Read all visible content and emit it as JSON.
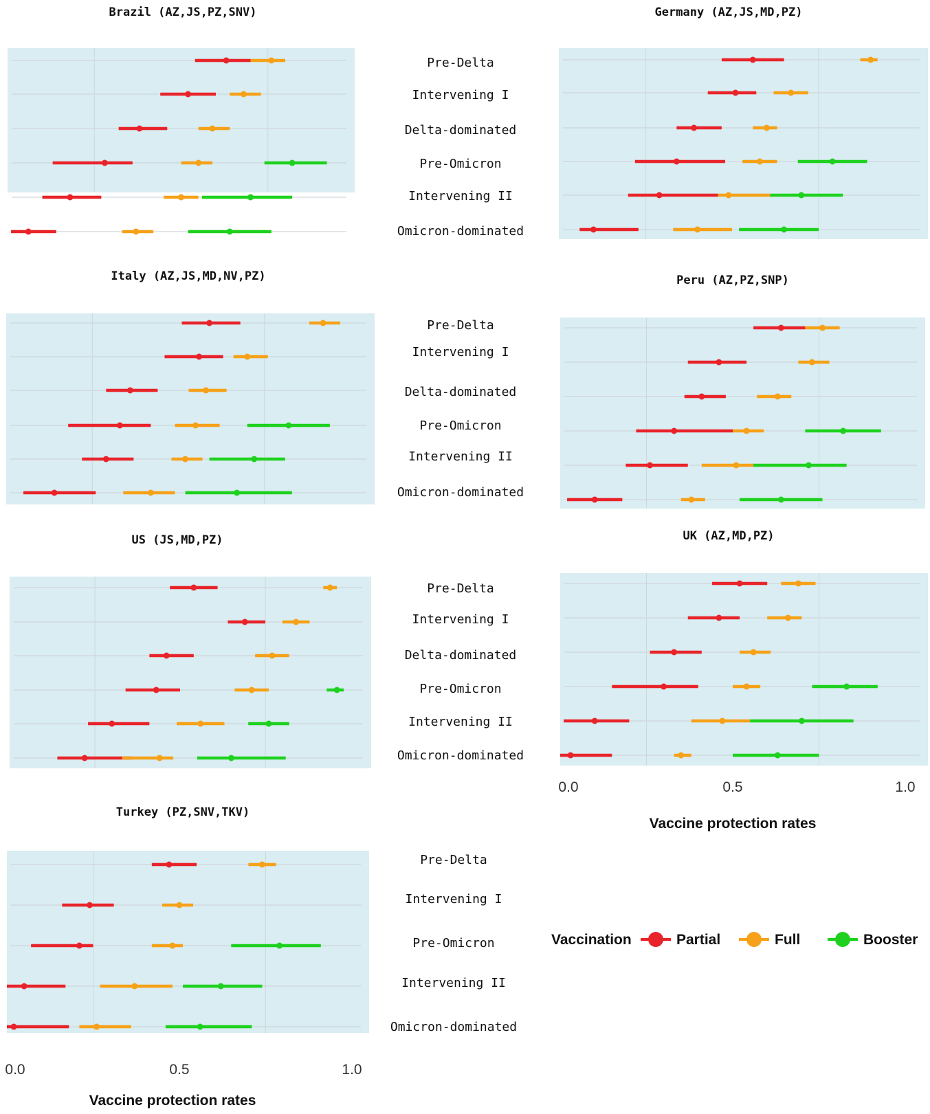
{
  "colors": {
    "Partial": "#e8242a",
    "Full": "#f6a118",
    "Booster": "#1ed11e",
    "panel": "#d9edf2",
    "grid": "#d0d6da"
  },
  "x_axis": {
    "label": "Vaccine  protection rates",
    "ticks": [
      "0.0",
      "0.5",
      "1.0"
    ]
  },
  "legend": {
    "title": "Vaccination",
    "items": [
      "Partial",
      "Full",
      "Booster"
    ]
  },
  "chart_data": [
    {
      "type": "forest",
      "title": "Brazil (AZ,JS,PZ,SNV)",
      "periods": [
        "Pre-Delta",
        "Intervening I",
        "Delta-dominated",
        "Pre-Omicron",
        "Intervening II",
        "Omicron-dominated"
      ],
      "xlim": [
        0,
        1
      ],
      "series": [
        {
          "name": "Partial",
          "values": [
            [
              0.63,
              0.54,
              0.7
            ],
            [
              0.52,
              0.44,
              0.6
            ],
            [
              0.38,
              0.32,
              0.46
            ],
            [
              0.28,
              0.13,
              0.36
            ],
            [
              0.18,
              0.1,
              0.27
            ],
            [
              0.06,
              0.01,
              0.14
            ]
          ]
        },
        {
          "name": "Full",
          "values": [
            [
              0.76,
              0.7,
              0.8
            ],
            [
              0.68,
              0.64,
              0.73
            ],
            [
              0.59,
              0.55,
              0.64
            ],
            [
              0.55,
              0.5,
              0.59
            ],
            [
              0.5,
              0.45,
              0.55
            ],
            [
              0.37,
              0.33,
              0.42
            ]
          ]
        },
        {
          "name": "Booster",
          "values": [
            null,
            null,
            null,
            [
              0.82,
              0.74,
              0.92
            ],
            [
              0.7,
              0.56,
              0.82
            ],
            [
              0.64,
              0.52,
              0.76
            ]
          ]
        }
      ]
    },
    {
      "type": "forest",
      "title": "Germany (AZ,JS,MD,PZ)",
      "periods": [
        "Pre-Delta",
        "Intervening I",
        "Delta-dominated",
        "Pre-Omicron",
        "Intervening II",
        "Omicron-dominated"
      ],
      "xlim": [
        0,
        1
      ],
      "series": [
        {
          "name": "Partial",
          "values": [
            [
              0.56,
              0.47,
              0.65
            ],
            [
              0.51,
              0.43,
              0.57
            ],
            [
              0.39,
              0.34,
              0.47
            ],
            [
              0.34,
              0.22,
              0.48
            ],
            [
              0.29,
              0.2,
              0.46
            ],
            [
              0.1,
              0.06,
              0.23
            ]
          ]
        },
        {
          "name": "Full",
          "values": [
            [
              0.9,
              0.87,
              0.92
            ],
            [
              0.67,
              0.62,
              0.72
            ],
            [
              0.6,
              0.56,
              0.63
            ],
            [
              0.58,
              0.53,
              0.63
            ],
            [
              0.49,
              0.46,
              0.61
            ],
            [
              0.4,
              0.33,
              0.5
            ]
          ]
        },
        {
          "name": "Booster",
          "values": [
            null,
            null,
            null,
            [
              0.79,
              0.69,
              0.89
            ],
            [
              0.7,
              0.61,
              0.82
            ],
            [
              0.65,
              0.52,
              0.75
            ]
          ]
        }
      ]
    },
    {
      "type": "forest",
      "title": "Italy (AZ,JS,MD,NV,PZ)",
      "periods": [
        "Pre-Delta",
        "Intervening I",
        "Delta-dominated",
        "Pre-Omicron",
        "Intervening II",
        "Omicron-dominated"
      ],
      "xlim": [
        0,
        1
      ],
      "series": [
        {
          "name": "Partial",
          "values": [
            [
              0.59,
              0.51,
              0.68
            ],
            [
              0.56,
              0.46,
              0.63
            ],
            [
              0.36,
              0.29,
              0.44
            ],
            [
              0.33,
              0.18,
              0.42
            ],
            [
              0.29,
              0.22,
              0.37
            ],
            [
              0.14,
              0.05,
              0.26
            ]
          ]
        },
        {
          "name": "Full",
          "values": [
            [
              0.92,
              0.88,
              0.97
            ],
            [
              0.7,
              0.66,
              0.76
            ],
            [
              0.58,
              0.53,
              0.64
            ],
            [
              0.55,
              0.49,
              0.62
            ],
            [
              0.52,
              0.48,
              0.57
            ],
            [
              0.42,
              0.34,
              0.49
            ]
          ]
        },
        {
          "name": "Booster",
          "values": [
            null,
            null,
            null,
            [
              0.82,
              0.7,
              0.94
            ],
            [
              0.72,
              0.59,
              0.81
            ],
            [
              0.67,
              0.52,
              0.83
            ]
          ]
        }
      ]
    },
    {
      "type": "forest",
      "title": "Peru (AZ,PZ,SNP)",
      "periods": [
        "Pre-Delta",
        "Intervening I",
        "Delta-dominated",
        "Pre-Omicron",
        "Intervening II",
        "Omicron-dominated"
      ],
      "xlim": [
        0,
        1
      ],
      "series": [
        {
          "name": "Partial",
          "values": [
            [
              0.64,
              0.56,
              0.71
            ],
            [
              0.46,
              0.37,
              0.54
            ],
            [
              0.41,
              0.36,
              0.48
            ],
            [
              0.33,
              0.22,
              0.5
            ],
            [
              0.26,
              0.19,
              0.37
            ],
            [
              0.1,
              0.02,
              0.18
            ]
          ]
        },
        {
          "name": "Full",
          "values": [
            [
              0.76,
              0.71,
              0.81
            ],
            [
              0.73,
              0.69,
              0.78
            ],
            [
              0.63,
              0.57,
              0.67
            ],
            [
              0.54,
              0.5,
              0.59
            ],
            [
              0.51,
              0.41,
              0.56
            ],
            [
              0.38,
              0.35,
              0.42
            ]
          ]
        },
        {
          "name": "Booster",
          "values": [
            null,
            null,
            null,
            [
              0.82,
              0.71,
              0.93
            ],
            [
              0.72,
              0.56,
              0.83
            ],
            [
              0.64,
              0.52,
              0.76
            ]
          ]
        }
      ]
    },
    {
      "type": "forest",
      "title": "US (JS,MD,PZ)",
      "periods": [
        "Pre-Delta",
        "Intervening I",
        "Delta-dominated",
        "Pre-Omicron",
        "Intervening II",
        "Omicron-dominated"
      ],
      "xlim": [
        0,
        1
      ],
      "series": [
        {
          "name": "Partial",
          "values": [
            [
              0.54,
              0.47,
              0.61
            ],
            [
              0.69,
              0.64,
              0.75
            ],
            [
              0.46,
              0.41,
              0.54
            ],
            [
              0.43,
              0.34,
              0.5
            ],
            [
              0.3,
              0.23,
              0.41
            ],
            [
              0.22,
              0.14,
              0.36
            ]
          ]
        },
        {
          "name": "Full",
          "values": [
            [
              0.94,
              0.92,
              0.96
            ],
            [
              0.84,
              0.8,
              0.88
            ],
            [
              0.77,
              0.72,
              0.82
            ],
            [
              0.71,
              0.66,
              0.76
            ],
            [
              0.56,
              0.49,
              0.63
            ],
            [
              0.44,
              0.33,
              0.48
            ]
          ]
        },
        {
          "name": "Booster",
          "values": [
            null,
            null,
            null,
            [
              0.96,
              0.93,
              0.98
            ],
            [
              0.76,
              0.7,
              0.82
            ],
            [
              0.65,
              0.55,
              0.81
            ]
          ]
        }
      ]
    },
    {
      "type": "forest",
      "title": "UK (AZ,MD,PZ)",
      "periods": [
        "Pre-Delta",
        "Intervening I",
        "Delta-dominated",
        "Pre-Omicron",
        "Intervening II",
        "Omicron-dominated"
      ],
      "xlim": [
        0,
        1
      ],
      "series": [
        {
          "name": "Partial",
          "values": [
            [
              0.52,
              0.44,
              0.6
            ],
            [
              0.46,
              0.37,
              0.52
            ],
            [
              0.33,
              0.26,
              0.41
            ],
            [
              0.3,
              0.15,
              0.4
            ],
            [
              0.1,
              0.01,
              0.2
            ],
            [
              0.03,
              0.0,
              0.15
            ]
          ]
        },
        {
          "name": "Full",
          "values": [
            [
              0.69,
              0.64,
              0.74
            ],
            [
              0.66,
              0.6,
              0.7
            ],
            [
              0.56,
              0.52,
              0.61
            ],
            [
              0.54,
              0.5,
              0.58
            ],
            [
              0.47,
              0.38,
              0.55
            ],
            [
              0.35,
              0.33,
              0.38
            ]
          ]
        },
        {
          "name": "Booster",
          "values": [
            null,
            null,
            null,
            [
              0.83,
              0.73,
              0.92
            ],
            [
              0.7,
              0.55,
              0.85
            ],
            [
              0.63,
              0.5,
              0.75
            ]
          ]
        }
      ]
    },
    {
      "type": "forest",
      "title": "Turkey (PZ,SNV,TKV)",
      "periods": [
        "Pre-Delta",
        "Intervening I",
        "Pre-Omicron",
        "Intervening II",
        "Omicron-dominated"
      ],
      "xlim": [
        0,
        1
      ],
      "series": [
        {
          "name": "Partial",
          "values": [
            [
              0.47,
              0.42,
              0.55
            ],
            [
              0.24,
              0.16,
              0.31
            ],
            [
              0.21,
              0.07,
              0.25
            ],
            [
              0.05,
              0.0,
              0.17
            ],
            [
              0.02,
              0.0,
              0.18
            ]
          ]
        },
        {
          "name": "Full",
          "values": [
            [
              0.74,
              0.7,
              0.78
            ],
            [
              0.5,
              0.45,
              0.54
            ],
            [
              0.48,
              0.42,
              0.51
            ],
            [
              0.37,
              0.27,
              0.48
            ],
            [
              0.26,
              0.21,
              0.36
            ]
          ]
        },
        {
          "name": "Booster",
          "values": [
            null,
            null,
            [
              0.79,
              0.65,
              0.91
            ],
            [
              0.62,
              0.51,
              0.74
            ],
            [
              0.56,
              0.46,
              0.71
            ]
          ]
        }
      ]
    }
  ]
}
